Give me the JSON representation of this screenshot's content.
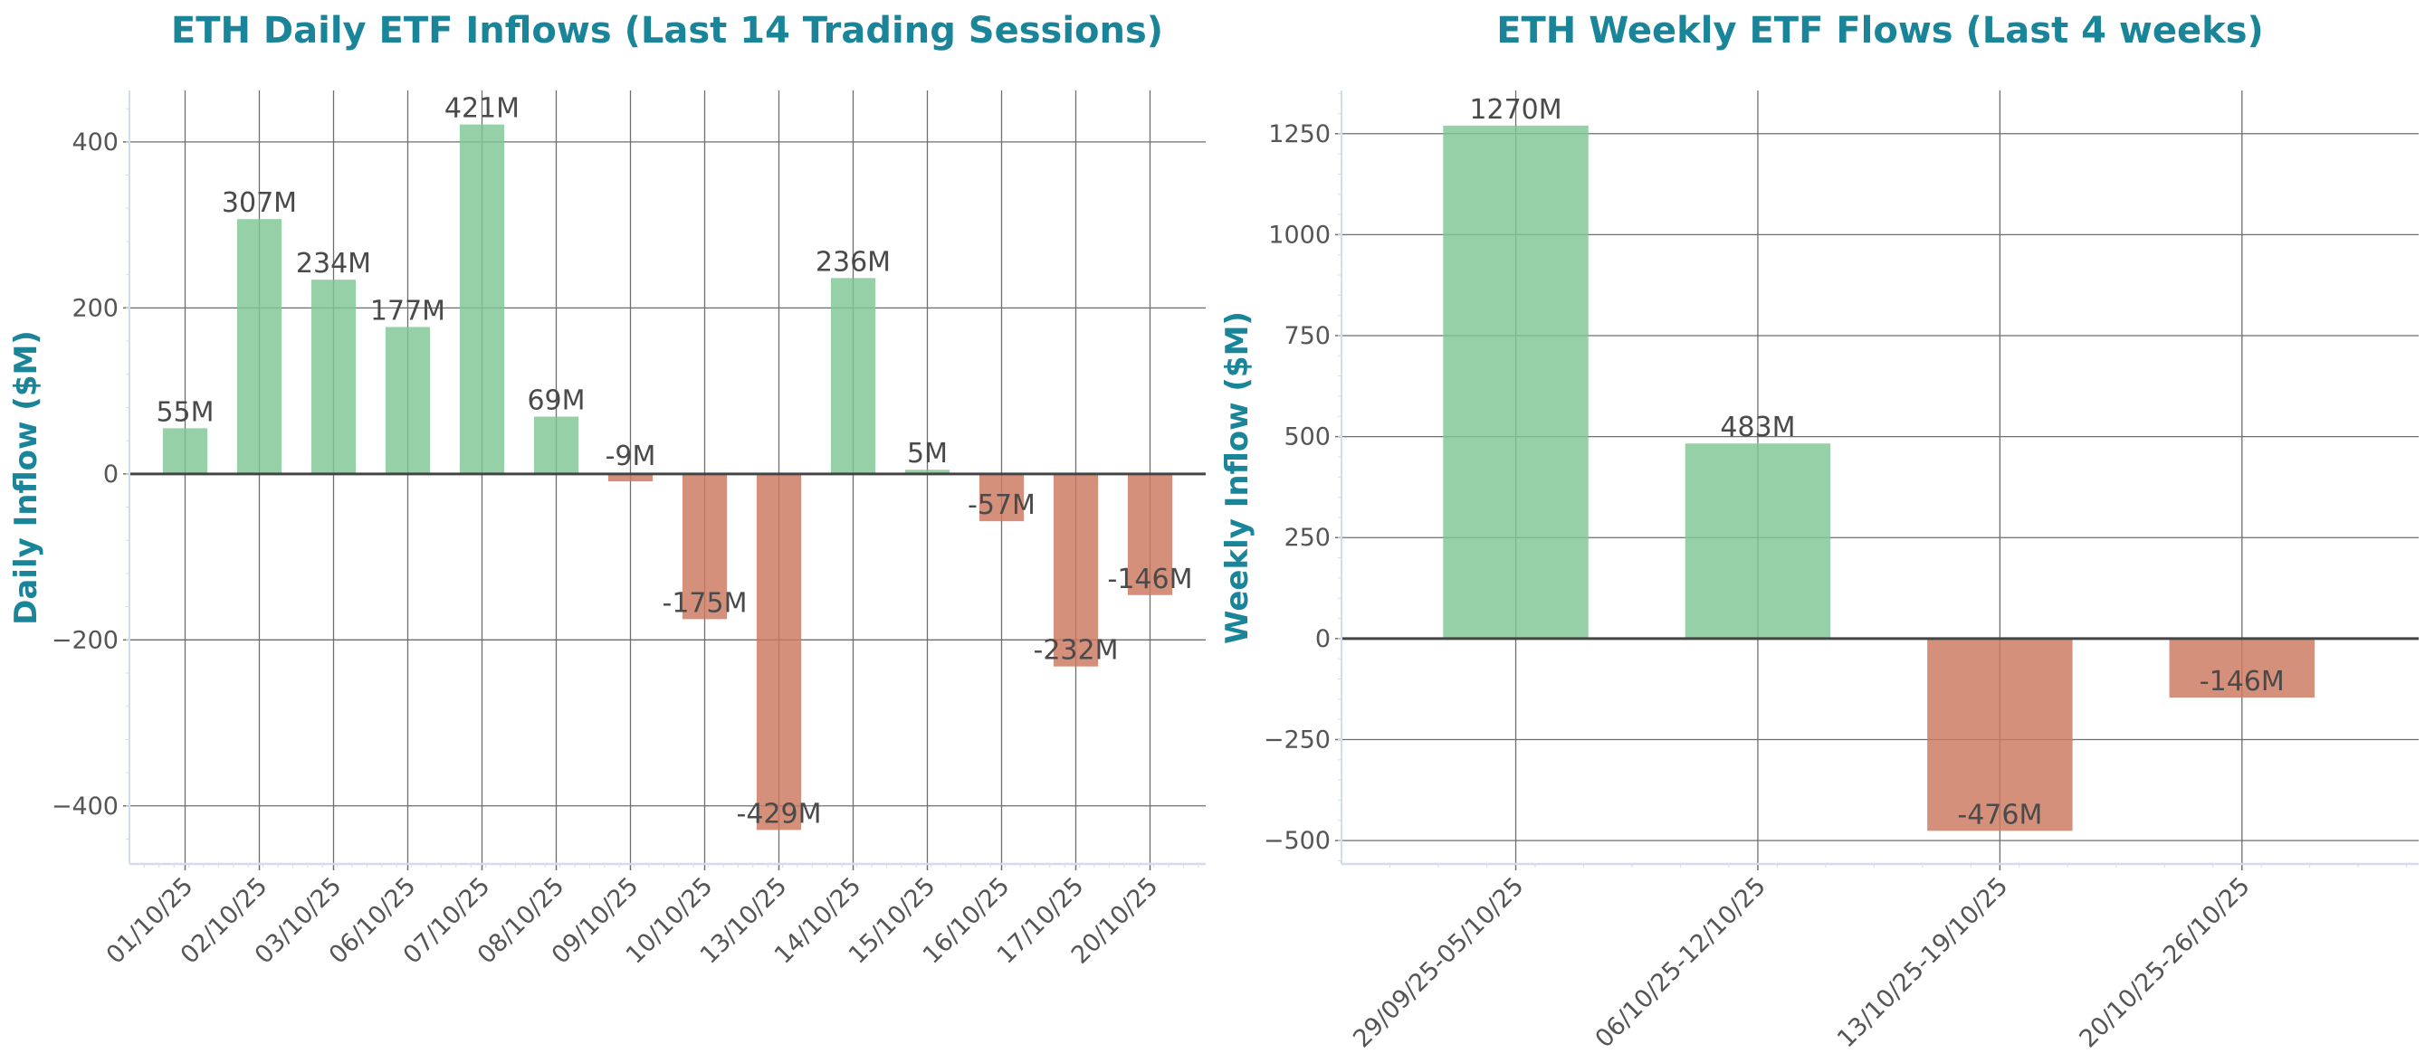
{
  "colors": {
    "title": "#1a8499",
    "positive": "#7fc794",
    "negative": "#cd7a61",
    "grid": "#6e6e6e",
    "zero_line": "#444444",
    "spine": "#d3dceb",
    "text": "#555555"
  },
  "chart_data": [
    {
      "type": "bar",
      "title": "ETH Daily ETF Inflows (Last 14 Trading Sessions)",
      "xlabel": "",
      "ylabel": "Daily Inflow ($M)",
      "ylim": [
        -470,
        462
      ],
      "yticks": [
        -400,
        -200,
        0,
        200,
        400
      ],
      "ytick_labels": [
        "−400",
        "−200",
        "0",
        "200",
        "400"
      ],
      "grid": true,
      "categories": [
        "01/10/25",
        "02/10/25",
        "03/10/25",
        "06/10/25",
        "07/10/25",
        "08/10/25",
        "09/10/25",
        "10/10/25",
        "13/10/25",
        "14/10/25",
        "15/10/25",
        "16/10/25",
        "17/10/25",
        "20/10/25"
      ],
      "values": [
        55,
        307,
        234,
        177,
        421,
        69,
        -9,
        -175,
        -429,
        236,
        5,
        -57,
        -232,
        -146
      ],
      "data_labels": [
        "55M",
        "307M",
        "234M",
        "177M",
        "421M",
        "69M",
        "-9M",
        "-175M",
        "-429M",
        "236M",
        "5M",
        "-57M",
        "-232M",
        "-146M"
      ]
    },
    {
      "type": "bar",
      "title": "ETH Weekly ETF Flows (Last 4 weeks)",
      "xlabel": "",
      "ylabel": "Weekly Inflow ($M)",
      "ylim": [
        -558,
        1357
      ],
      "yticks": [
        -500,
        -250,
        0,
        250,
        500,
        750,
        1000,
        1250
      ],
      "ytick_labels": [
        "−500",
        "−250",
        "0",
        "250",
        "500",
        "750",
        "1000",
        "1250"
      ],
      "grid": true,
      "categories": [
        "29/09/25-05/10/25",
        "06/10/25-12/10/25",
        "13/10/25-19/10/25",
        "20/10/25-26/10/25"
      ],
      "values": [
        1270,
        483,
        -476,
        -146
      ],
      "data_labels": [
        "1270M",
        "483M",
        "-476M",
        "-146M"
      ]
    }
  ]
}
